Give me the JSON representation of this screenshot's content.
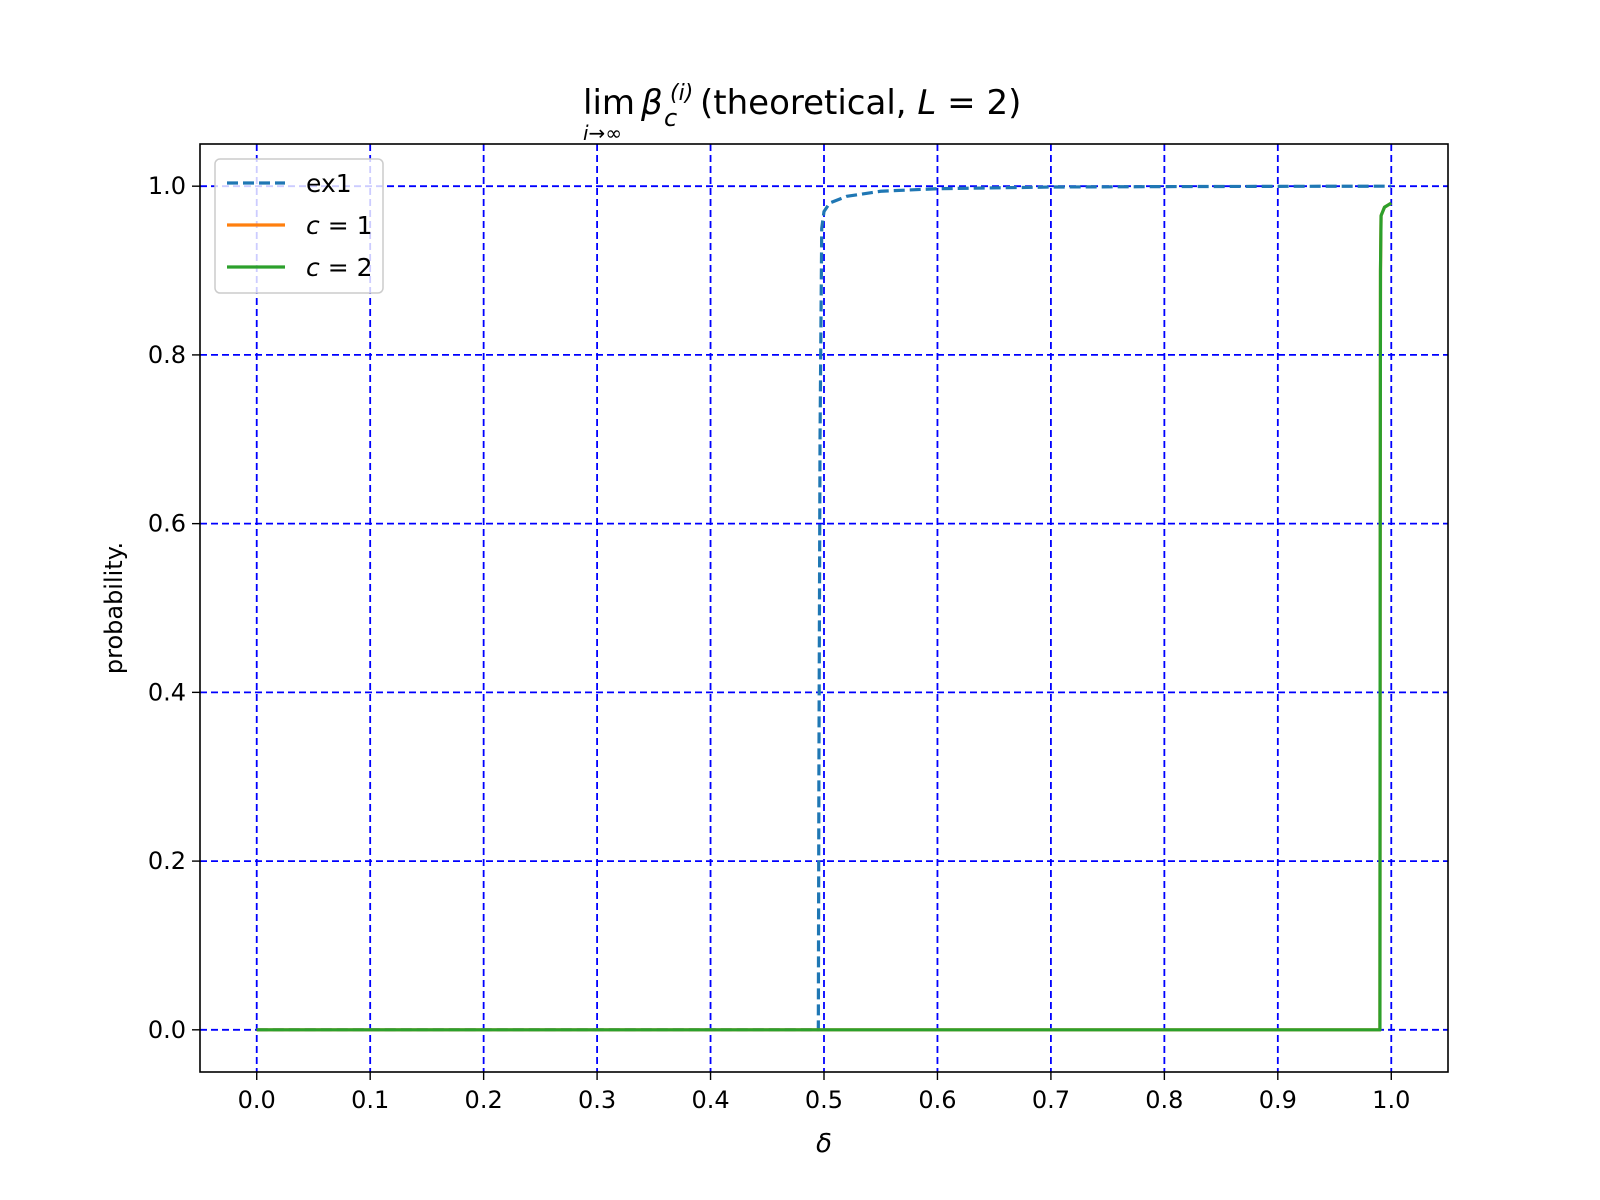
{
  "chart_data": {
    "type": "line",
    "title": {
      "lim": "lim",
      "lim_sub": "i→∞",
      "beta": "β",
      "beta_sup": "(i)",
      "beta_sub": "c",
      "rest_open": " (theoretical, ",
      "L": "L",
      "eq": " = 2)"
    },
    "xlabel": "δ",
    "ylabel": "probability.",
    "xlim": [
      -0.05,
      1.05
    ],
    "ylim": [
      -0.05,
      1.05
    ],
    "xticks": [
      0.0,
      0.1,
      0.2,
      0.3,
      0.4,
      0.5,
      0.6,
      0.7,
      0.8,
      0.9,
      1.0
    ],
    "xtick_labels": [
      "0.0",
      "0.1",
      "0.2",
      "0.3",
      "0.4",
      "0.5",
      "0.6",
      "0.7",
      "0.8",
      "0.9",
      "1.0"
    ],
    "yticks": [
      0.0,
      0.2,
      0.4,
      0.6,
      0.8,
      1.0
    ],
    "ytick_labels": [
      "0.0",
      "0.2",
      "0.4",
      "0.6",
      "0.8",
      "1.0"
    ],
    "grid": true,
    "grid_color": "#0000ff",
    "legend_position": "upper-left",
    "series": [
      {
        "name": "ex1",
        "name_italic": false,
        "color": "#1f77b4",
        "dashed": true,
        "points": [
          [
            0.0,
            0.0
          ],
          [
            0.495,
            0.0
          ],
          [
            0.4955,
            0.3
          ],
          [
            0.4965,
            0.7
          ],
          [
            0.498,
            0.95
          ],
          [
            0.5,
            0.97
          ],
          [
            0.505,
            0.98
          ],
          [
            0.52,
            0.988
          ],
          [
            0.55,
            0.994
          ],
          [
            0.6,
            0.997
          ],
          [
            0.7,
            0.999
          ],
          [
            0.8,
            0.9995
          ],
          [
            0.9,
            0.9998
          ],
          [
            1.0,
            1.0
          ]
        ]
      },
      {
        "name": "c = 1",
        "name_italic": true,
        "color": "#ff7f0e",
        "dashed": false,
        "points": [
          [
            0.0,
            0.0
          ],
          [
            0.99,
            0.0
          ],
          [
            0.9902,
            0.5
          ],
          [
            0.9905,
            0.9
          ],
          [
            0.991,
            0.965
          ],
          [
            0.994,
            0.975
          ],
          [
            1.0,
            0.98
          ]
        ]
      },
      {
        "name": "c = 2",
        "name_italic": true,
        "color": "#2ca02c",
        "dashed": false,
        "points": [
          [
            0.0,
            0.0
          ],
          [
            0.99,
            0.0
          ],
          [
            0.9902,
            0.5
          ],
          [
            0.9905,
            0.9
          ],
          [
            0.991,
            0.965
          ],
          [
            0.994,
            0.975
          ],
          [
            1.0,
            0.98
          ]
        ]
      }
    ]
  }
}
